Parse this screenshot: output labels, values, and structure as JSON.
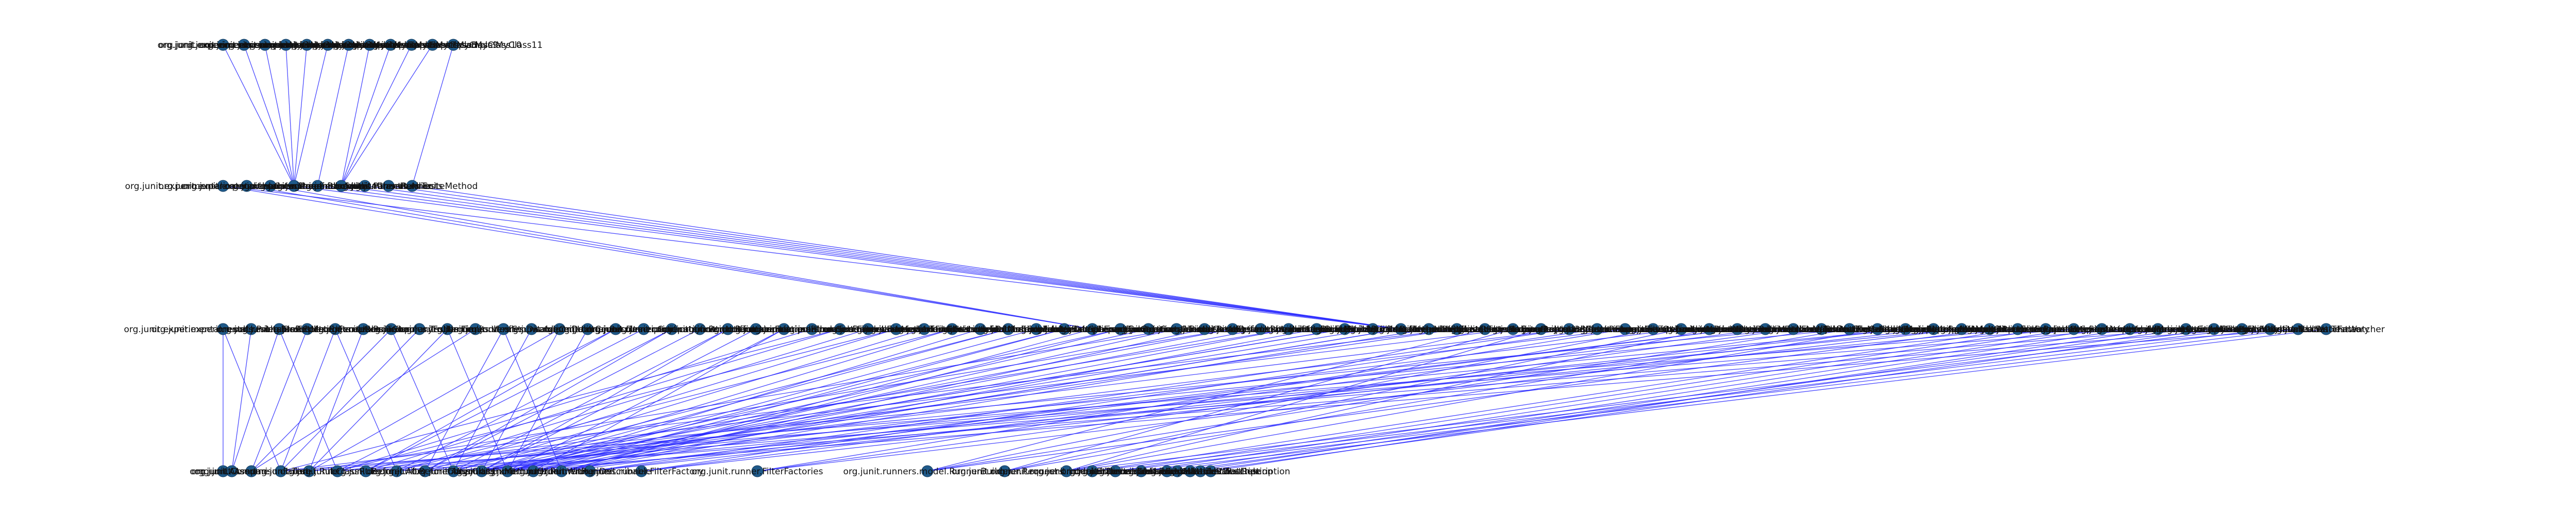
{
  "graph": {
    "rows": [
      {
        "id": "row-1",
        "nodes": [
          {
            "id": "r1n0",
            "label": "org.junit.experiments.sample"
          },
          {
            "id": "r1n1",
            "label": "org.junit.experiments.sample.MyClass1"
          },
          {
            "id": "r1n2",
            "label": "org.junit.experiments.sample.MyClass2"
          },
          {
            "id": "r1n3",
            "label": "org.junit.experiments.sample.MyClass3"
          },
          {
            "id": "r1n4",
            "label": "org.junit.experiments.sample.MyClass4"
          },
          {
            "id": "r1n5",
            "label": "org.junit.experiments.sample.MyClass5"
          },
          {
            "id": "r1n6",
            "label": "org.junit.experiments.sample.MyClass6"
          },
          {
            "id": "r1n7",
            "label": "org.junit.experiments.sample.MyClass7"
          },
          {
            "id": "r1n8",
            "label": "org.junit.experiments.sample.MyClass8"
          },
          {
            "id": "r1n9",
            "label": "org.junit.experiments.sample.MyClass9"
          },
          {
            "id": "r1n10",
            "label": "org.junit.experiments.sample.MyClass10"
          },
          {
            "id": "r1n11",
            "label": "org.junit.experiments.sample.MyClass11"
          }
        ]
      },
      {
        "id": "row-2",
        "nodes": [
          {
            "id": "r2n0",
            "label": "org.junit.experimental.categories.Categories"
          },
          {
            "id": "r2n1",
            "label": "org.junit.experimental.theories.Theories"
          },
          {
            "id": "r2n2",
            "label": "org.junit.experimental.runners.Enclosed"
          },
          {
            "id": "r2n3",
            "label": "org.junit.runners.Parameterized"
          },
          {
            "id": "r2n4",
            "label": "org.junit.runners.Suite"
          },
          {
            "id": "r2n5",
            "label": "org.junit.runners.BlockJUnit4ClassRunner"
          },
          {
            "id": "r2n6",
            "label": "org.junit.runners.ParentRunner"
          },
          {
            "id": "r2n7",
            "label": "org.junit.runners.AllTests"
          },
          {
            "id": "r2n8",
            "label": "org.junit.runners.SuiteMethod"
          }
        ]
      },
      {
        "id": "row-3",
        "nodes": [
          {
            "id": "r3n0",
            "label": "org.junit.experimental.results.PrintableResult"
          },
          {
            "id": "r3n1",
            "label": "org.junit.experimental.results.ResultMatchers"
          },
          {
            "id": "r3n2",
            "label": "org.junit.rules.ErrorCollector"
          },
          {
            "id": "r3n3",
            "label": "org.junit.rules.ExpectedException"
          },
          {
            "id": "r3n4",
            "label": "org.junit.rules.ExternalResource"
          },
          {
            "id": "r3n5",
            "label": "org.junit.rules.RuleChain"
          },
          {
            "id": "r3n6",
            "label": "org.junit.rules.TemporaryFolder"
          },
          {
            "id": "r3n7",
            "label": "org.junit.rules.TestName"
          },
          {
            "id": "r3n8",
            "label": "org.junit.rules.Timeout"
          },
          {
            "id": "r3n9",
            "label": "org.junit.rules.Verifier"
          },
          {
            "id": "r3n10",
            "label": "org.junit.rules.Stopwatch"
          },
          {
            "id": "r3n11",
            "label": "org.junit.rules.DisableOnDebug"
          },
          {
            "id": "r3n12",
            "label": "org.junit.runner.JUnitCore"
          },
          {
            "id": "r3n13",
            "label": "org.junit.runner.Result"
          },
          {
            "id": "r3n14",
            "label": "org.junit.runner.Description"
          },
          {
            "id": "r3n15",
            "label": "org.junit.runner.Computer"
          },
          {
            "id": "r3n16",
            "label": "org.junit.runner.notification.RunNotifier"
          },
          {
            "id": "r3n17",
            "label": "org.junit.runner.notification.RunListener"
          },
          {
            "id": "r3n18",
            "label": "org.junit.runner.notification.Failure"
          },
          {
            "id": "r3n19",
            "label": "org.junit.runner.manipulation.Filter"
          },
          {
            "id": "r3n20",
            "label": "org.junit.runner.manipulation.Sorter"
          },
          {
            "id": "r3n21",
            "label": "org.junit.runner.manipulation.Filterable"
          },
          {
            "id": "r3n22",
            "label": "org.junit.runners.model.FrameworkMethod"
          },
          {
            "id": "r3n23",
            "label": "org.junit.runners.model.FrameworkField"
          },
          {
            "id": "r3n24",
            "label": "org.junit.runners.model.TestClass"
          },
          {
            "id": "r3n25",
            "label": "org.junit.runners.model.Statement"
          },
          {
            "id": "r3n26",
            "label": "org.junit.runners.model.InitializationError"
          },
          {
            "id": "r3n27",
            "label": "org.junit.runners.model.RunnerScheduler"
          },
          {
            "id": "r3n28",
            "label": "org.junit.runners.model.MultipleFailureException"
          },
          {
            "id": "r3n29",
            "label": "org.junit.internal.AssumptionViolatedException"
          },
          {
            "id": "r3n30",
            "label": "org.junit.internal.ArrayComparisonFailure"
          },
          {
            "id": "r3n31",
            "label": "org.junit.internal.ComparisonCriteria"
          },
          {
            "id": "r3n32",
            "label": "org.junit.internal.ExactComparisonCriteria"
          },
          {
            "id": "r3n33",
            "label": "org.junit.internal.InexactComparisonCriteria"
          },
          {
            "id": "r3n34",
            "label": "org.junit.internal.TextListener"
          },
          {
            "id": "r3n35",
            "label": "org.junit.internal.RealSystem"
          },
          {
            "id": "r3n36",
            "label": "org.junit.internal.builders.AllDefaultPossibilitiesBuilder"
          },
          {
            "id": "r3n37",
            "label": "org.junit.internal.builders.AnnotatedBuilder"
          },
          {
            "id": "r3n38",
            "label": "org.junit.internal.builders.IgnoredBuilder"
          },
          {
            "id": "r3n39",
            "label": "org.junit.internal.builders.JUnit3Builder"
          },
          {
            "id": "r3n40",
            "label": "org.junit.internal.builders.JUnit4Builder"
          },
          {
            "id": "r3n41",
            "label": "org.junit.internal.builders.SuiteMethodBuilder"
          },
          {
            "id": "r3n42",
            "label": "org.junit.internal.builders.NullBuilder"
          },
          {
            "id": "r3n43",
            "label": "org.junit.internal.requests.ClassRequest"
          },
          {
            "id": "r3n44",
            "label": "org.junit.internal.requests.FilterRequest"
          },
          {
            "id": "r3n45",
            "label": "org.junit.internal.requests.SortingRequest"
          },
          {
            "id": "r3n46",
            "label": "org.junit.internal.runners.ErrorReportingRunner"
          },
          {
            "id": "r3n47",
            "label": "org.junit.internal.runners.JUnit38ClassRunner"
          },
          {
            "id": "r3n48",
            "label": "org.junit.internal.runners.statements.ExpectException"
          },
          {
            "id": "r3n49",
            "label": "org.junit.internal.runners.statements.FailOnTimeout"
          },
          {
            "id": "r3n50",
            "label": "org.junit.internal.runners.statements.InvokeMethod"
          },
          {
            "id": "r3n51",
            "label": "org.junit.internal.runners.statements.RunAfters"
          },
          {
            "id": "r3n52",
            "label": "org.junit.internal.runners.statements.RunBefores"
          },
          {
            "id": "r3n53",
            "label": "org.junit.internal.runners.statements.Fail"
          },
          {
            "id": "r3n54",
            "label": "org.junit.internal.runners.rules.RuleMemberValidator"
          },
          {
            "id": "r3n55",
            "label": "org.junit.internal.runners.model.EachTestNotifier"
          },
          {
            "id": "r3n56",
            "label": "org.junit.internal.runners.model.ReflectiveCallable"
          },
          {
            "id": "r3n57",
            "label": "org.junit.internal.matchers.ThrowableMessageMatcher"
          },
          {
            "id": "r3n58",
            "label": "org.junit.internal.matchers.ThrowableCauseMatcher"
          },
          {
            "id": "r3n59",
            "label": "org.junit.internal.matchers.StacktracePrintingMatcher"
          },
          {
            "id": "r3n60",
            "label": "org.junit.internal.matchers.TypeSafeMatcher"
          },
          {
            "id": "r3n61",
            "label": "org.junit.experimental.max.MaxCore"
          },
          {
            "id": "r3n62",
            "label": "org.junit.experimental.max.MaxHistory"
          },
          {
            "id": "r3n63",
            "label": "org.junit.experimental.ParallelComputer"
          },
          {
            "id": "r3n64",
            "label": "org.junit.experimental.theories.ParameterSignature"
          },
          {
            "id": "r3n65",
            "label": "org.junit.experimental.theories.PotentialAssignment"
          },
          {
            "id": "r3n66",
            "label": "org.junit.experimental.theories.internal.Assignments"
          },
          {
            "id": "r3n67",
            "label": "org.junit.experimental.theories.internal.AllMembersSupplier"
          },
          {
            "id": "r3n68",
            "label": "org.junit.experimental.theories.internal.ParameterizedAssertionError"
          },
          {
            "id": "r3n69",
            "label": "org.junit.experimental.categories.CategoryFilterFactory"
          },
          {
            "id": "r3n70",
            "label": "org.junit.experimental.categories.CategoryValidator"
          },
          {
            "id": "r3n71",
            "label": "org.junit.validator.AnnotationsValidator"
          },
          {
            "id": "r3n72",
            "label": "org.junit.validator.PublicClassValidator"
          },
          {
            "id": "r3n73",
            "label": "org.junit.validator.AnnotationValidatorFactory"
          },
          {
            "id": "r3n74",
            "label": "org.junit.rules.TestWatchman"
          },
          {
            "id": "r3n75",
            "label": "org.junit.rules.TestWatcher"
          }
        ]
      },
      {
        "id": "row-4",
        "nodes": [
          {
            "id": "r4n0",
            "label": "org.junit.Assert"
          },
          {
            "id": "r4n1",
            "label": "org.junit.Assume"
          },
          {
            "id": "r4n2",
            "label": "org.junit.ComparisonFailure"
          },
          {
            "id": "r4n3",
            "label": "org.junit.Test"
          },
          {
            "id": "r4n4",
            "label": "org.junit.Rule"
          },
          {
            "id": "r4n5",
            "label": "org.junit.ClassRule"
          },
          {
            "id": "r4n6",
            "label": "org.junit.Before"
          },
          {
            "id": "r4n7",
            "label": "org.junit.After"
          },
          {
            "id": "r4n8",
            "label": "org.junit.BeforeClass"
          },
          {
            "id": "r4n9",
            "label": "org.junit.AfterClass"
          },
          {
            "id": "r4n10",
            "label": "org.junit.Ignore"
          },
          {
            "id": "r4n11",
            "label": "org.junit.FixMethodOrder"
          },
          {
            "id": "r4n12",
            "label": "org.junit.runner.RunWith"
          },
          {
            "id": "r4n13",
            "label": "org.junit.runner.Runner"
          },
          {
            "id": "r4n14",
            "label": "org.junit.runner.Describable"
          },
          {
            "id": "r4n15",
            "label": "org.junit.runner.FilterFactory"
          },
          {
            "id": "r4n16",
            "label": "org.junit.runner.FilterFactories"
          },
          {
            "id": "r4n17",
            "label": "org.junit.runners.model.RunnerBuilder"
          },
          {
            "id": "r4n18",
            "label": "org.junit.runner.Request"
          },
          {
            "id": "r4n19",
            "label": "org.junit.runners.model.Statement"
          },
          {
            "id": "r4n20",
            "label": "org.junit.internal.Throwables"
          },
          {
            "id": "r4n21",
            "label": "org.junit.internal.Classes"
          },
          {
            "id": "r4n22",
            "label": "org.junit.internal.MethodSorter"
          },
          {
            "id": "r4n23",
            "label": "org.junit.internal.SerializableMatcherDescription"
          },
          {
            "id": "r4n24",
            "label": "org.junit.internal.SerializableValueDescription"
          },
          {
            "id": "r4n25",
            "label": "org.junit.rules.TestRule"
          },
          {
            "id": "r4n26",
            "label": "org.junit.rules.MethodRule"
          },
          {
            "id": "r4n27",
            "label": "org.junit.rules.TestWatcher"
          }
        ]
      }
    ]
  }
}
